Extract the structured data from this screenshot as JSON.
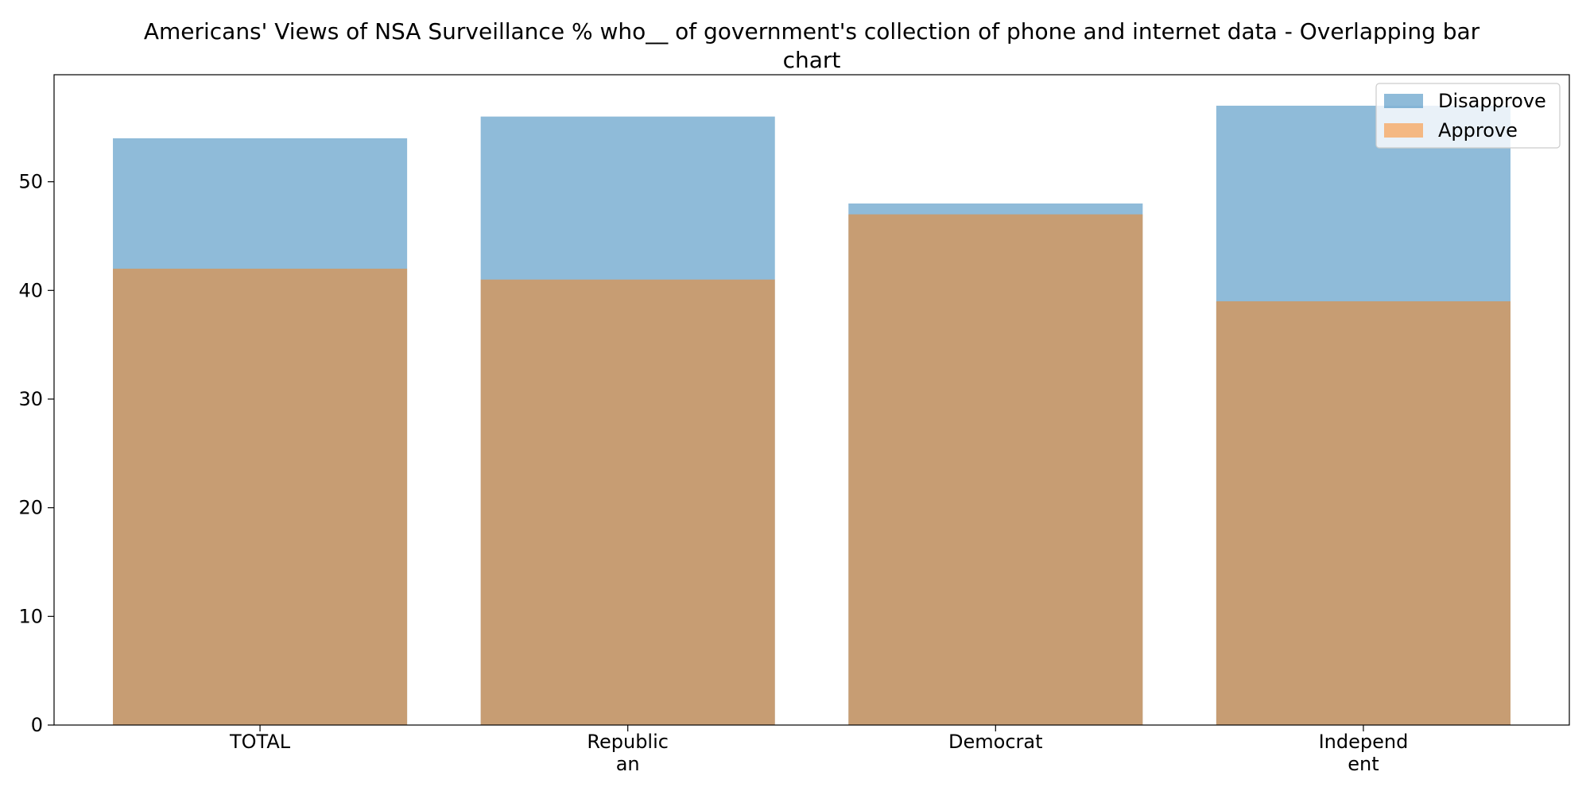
{
  "chart_data": {
    "type": "bar",
    "overlapping": true,
    "title_lines": [
      "Americans' Views of NSA Surveillance % who__ of government's collection of phone and internet data  - Overlapping bar",
      "chart"
    ],
    "categories": [
      [
        "TOTAL"
      ],
      [
        "Republic",
        "an"
      ],
      [
        "Democrat"
      ],
      [
        "Independ",
        "ent"
      ]
    ],
    "series": [
      {
        "name": "Disapprove",
        "values": [
          54,
          56,
          48,
          57
        ],
        "color": "#1f77b4",
        "alpha": 0.5
      },
      {
        "name": "Approve",
        "values": [
          42,
          41,
          47,
          39
        ],
        "color": "#ff7f0e",
        "alpha": 0.5
      }
    ],
    "ylim": [
      0,
      59.85
    ],
    "yticks": [
      0,
      10,
      20,
      30,
      40,
      50
    ],
    "xlabel": "",
    "ylabel": "",
    "grid": false,
    "legend": {
      "placement": "top-right"
    }
  }
}
